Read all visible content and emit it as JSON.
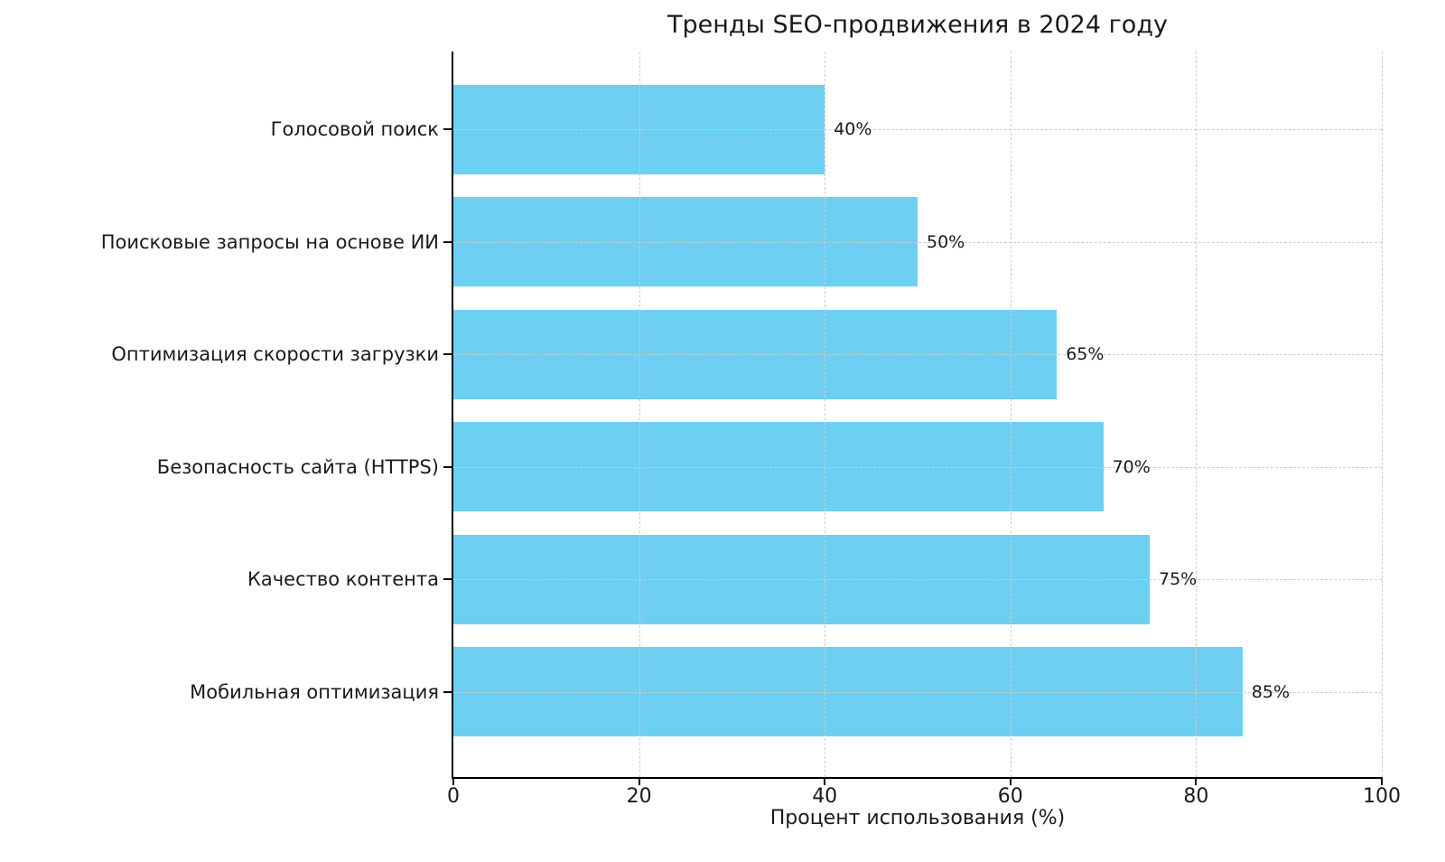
{
  "chart_data": {
    "type": "bar",
    "orientation": "horizontal",
    "title": "Тренды SEO-продвижения в 2024 году",
    "xlabel": "Процент использования (%)",
    "ylabel": "",
    "categories": [
      "Голосовой поиск",
      "Поисковые запросы на основе ИИ",
      "Оптимизация скорости загрузки",
      "Безопасность сайта (HTTPS)",
      "Качество контента",
      "Мобильная оптимизация"
    ],
    "values": [
      40,
      50,
      65,
      70,
      75,
      85
    ],
    "value_labels": [
      "40%",
      "50%",
      "65%",
      "70%",
      "75%",
      "85%"
    ],
    "xlim": [
      0,
      100
    ],
    "xticks": [
      0,
      20,
      40,
      60,
      80,
      100
    ],
    "xtick_labels": [
      "0",
      "20",
      "40",
      "60",
      "80",
      "100"
    ],
    "grid": "dashed-both-axes-over-bars",
    "legend": "none",
    "colors": {
      "bar": "#6DCFF2",
      "grid": "#cdcdcd",
      "spine": "#000000",
      "text": "#1a1a1a",
      "background": "#ffffff"
    }
  }
}
